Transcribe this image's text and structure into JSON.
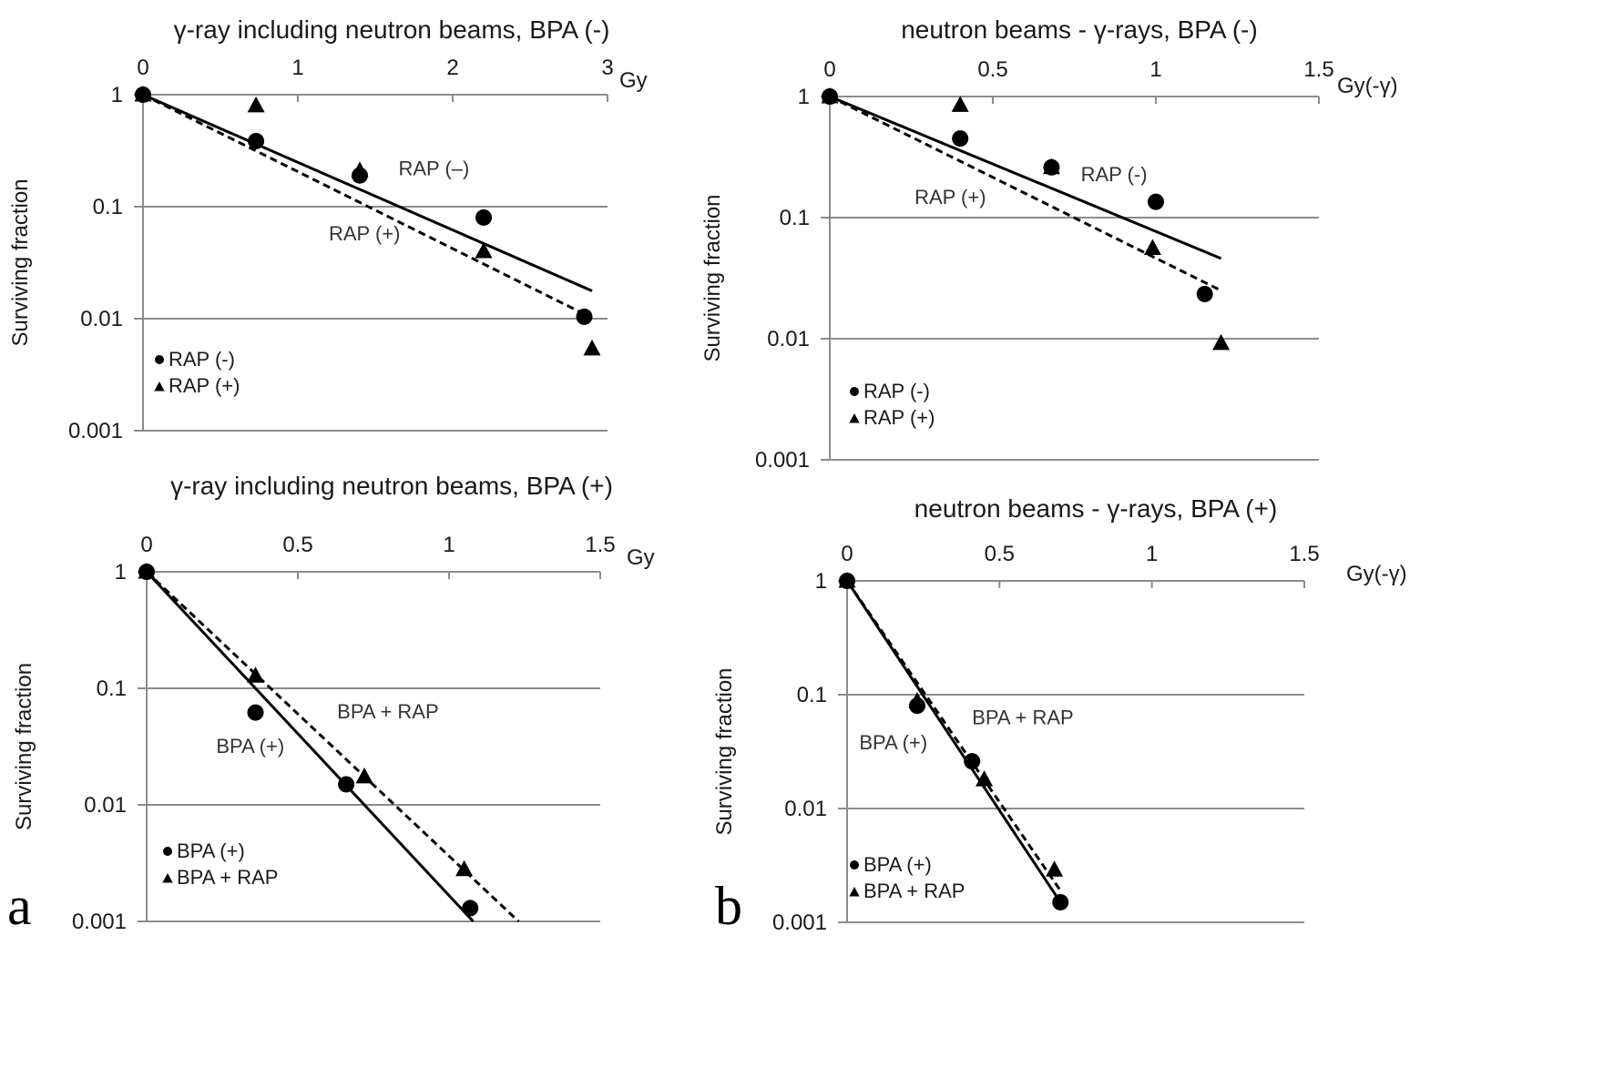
{
  "chart_data": [
    {
      "id": "a-top",
      "type": "scatter",
      "title": "γ-ray including neutron beams, BPA (-)",
      "xlabel": "Gy",
      "ylabel": "Surviving fraction",
      "x_ticks": [
        "0",
        "1",
        "2",
        "3"
      ],
      "x_tick_values": [
        0,
        1,
        2,
        3
      ],
      "xlim": [
        0,
        3
      ],
      "y_scale": "log",
      "y_ticks": [
        "1",
        "0.1",
        "0.01",
        "0.001"
      ],
      "y_tick_values": [
        1,
        0.1,
        0.01,
        0.001
      ],
      "ylim": [
        0.001,
        1
      ],
      "grid": "horizontal",
      "legend_position": "bottom-left",
      "series": [
        {
          "name": "RAP (-)",
          "marker": "circle",
          "fit": "solid",
          "x": [
            0,
            0.73,
            1.4,
            2.2,
            2.85
          ],
          "y": [
            1,
            0.385,
            0.19,
            0.08,
            0.0104
          ],
          "fit_line": {
            "x": [
              0,
              2.9
            ],
            "y": [
              1,
              0.0177
            ]
          }
        },
        {
          "name": "RAP (+)",
          "marker": "triangle",
          "fit": "dashed",
          "x": [
            0,
            0.73,
            1.4,
            2.2,
            2.9
          ],
          "y": [
            1,
            0.8,
            0.21,
            0.04,
            0.0054
          ],
          "fit_line": {
            "x": [
              0,
              2.85
            ],
            "y": [
              1,
              0.011
            ]
          }
        }
      ],
      "annotations": [
        {
          "text": "RAP (–)",
          "x": 1.65,
          "y": 0.19
        },
        {
          "text": "RAP (+)",
          "x": 1.2,
          "y": 0.05
        }
      ],
      "panel_letter": ""
    },
    {
      "id": "b-top",
      "type": "scatter",
      "title": "neutron beams - γ-rays, BPA (-)",
      "xlabel": "Gy(-γ)",
      "ylabel": "Surviving fraction",
      "x_ticks": [
        "0",
        "0.5",
        "1",
        "1.5"
      ],
      "x_tick_values": [
        0,
        0.5,
        1,
        1.5
      ],
      "xlim": [
        0,
        1.5
      ],
      "y_scale": "log",
      "y_ticks": [
        "1",
        "0.1",
        "0.01",
        "0.001"
      ],
      "y_tick_values": [
        1,
        0.1,
        0.01,
        0.001
      ],
      "ylim": [
        0.001,
        1
      ],
      "grid": "horizontal",
      "legend_position": "bottom-left",
      "series": [
        {
          "name": "RAP (-)",
          "marker": "circle",
          "fit": "solid",
          "x": [
            0,
            0.4,
            0.68,
            1.0,
            1.15
          ],
          "y": [
            1,
            0.45,
            0.26,
            0.135,
            0.0234
          ],
          "fit_line": {
            "x": [
              0,
              1.2
            ],
            "y": [
              1,
              0.046
            ]
          }
        },
        {
          "name": "RAP (+)",
          "marker": "triangle",
          "fit": "dashed",
          "x": [
            0,
            0.4,
            0.68,
            0.99,
            1.2
          ],
          "y": [
            1,
            0.85,
            0.26,
            0.056,
            0.0092
          ],
          "fit_line": {
            "x": [
              0,
              1.2
            ],
            "y": [
              1,
              0.025
            ]
          }
        }
      ],
      "annotations": [
        {
          "text": "RAP (-)",
          "x": 0.77,
          "y": 0.2
        },
        {
          "text": "RAP (+)",
          "x": 0.26,
          "y": 0.13
        }
      ],
      "panel_letter": ""
    },
    {
      "id": "a-bottom",
      "type": "scatter",
      "title": "γ-ray including neutron beams, BPA (+)",
      "xlabel": "Gy",
      "ylabel": "Surviving fraction",
      "x_ticks": [
        "0",
        "0.5",
        "1",
        "1.5"
      ],
      "x_tick_values": [
        0,
        0.5,
        1,
        1.5
      ],
      "xlim": [
        0,
        1.5
      ],
      "y_scale": "log",
      "y_ticks": [
        "1",
        "0.1",
        "0.01",
        "0.001"
      ],
      "y_tick_values": [
        1,
        0.1,
        0.01,
        0.001
      ],
      "ylim": [
        0.001,
        1
      ],
      "grid": "horizontal",
      "legend_position": "bottom-left",
      "series": [
        {
          "name": "BPA (+)",
          "marker": "circle",
          "fit": "solid",
          "x": [
            0,
            0.36,
            0.66,
            1.07
          ],
          "y": [
            1,
            0.062,
            0.015,
            0.0013
          ],
          "fit_line": {
            "x": [
              0,
              1.08
            ],
            "y": [
              1,
              0.001
            ]
          }
        },
        {
          "name": "BPA + RAP",
          "marker": "triangle",
          "fit": "dashed",
          "x": [
            0,
            0.36,
            0.72,
            1.05
          ],
          "y": [
            1,
            0.128,
            0.0175,
            0.0028
          ],
          "fit_line": {
            "x": [
              0,
              1.23
            ],
            "y": [
              1,
              0.001
            ]
          }
        }
      ],
      "annotations": [
        {
          "text": "BPA + RAP",
          "x": 0.63,
          "y": 0.055
        },
        {
          "text": "BPA (+)",
          "x": 0.23,
          "y": 0.028
        }
      ],
      "panel_letter": "a"
    },
    {
      "id": "b-bottom",
      "type": "scatter",
      "title": "neutron beams - γ-rays, BPA (+)",
      "xlabel": "Gy(-γ)",
      "ylabel": "Surviving fraction",
      "x_ticks": [
        "0",
        "0.5",
        "1",
        "1.5"
      ],
      "x_tick_values": [
        0,
        0.5,
        1,
        1.5
      ],
      "xlim": [
        0,
        1.5
      ],
      "y_scale": "log",
      "y_ticks": [
        "1",
        "0.1",
        "0.01",
        "0.001"
      ],
      "y_tick_values": [
        1,
        0.1,
        0.01,
        0.001
      ],
      "ylim": [
        0.001,
        1
      ],
      "grid": "horizontal",
      "legend_position": "bottom-left",
      "series": [
        {
          "name": "BPA (+)",
          "marker": "circle",
          "fit": "solid",
          "x": [
            0,
            0.23,
            0.41,
            0.7
          ],
          "y": [
            1,
            0.08,
            0.026,
            0.0015
          ],
          "fit_line": {
            "x": [
              0,
              0.7
            ],
            "y": [
              1,
              0.0015
            ]
          }
        },
        {
          "name": "BPA + RAP",
          "marker": "triangle",
          "fit": "dashed",
          "x": [
            0,
            0.23,
            0.45,
            0.68
          ],
          "y": [
            1,
            0.088,
            0.018,
            0.0029
          ],
          "fit_line": {
            "x": [
              0,
              0.7
            ],
            "y": [
              1,
              0.0019
            ]
          }
        }
      ],
      "annotations": [
        {
          "text": "BPA + RAP",
          "x": 0.41,
          "y": 0.055
        },
        {
          "text": "BPA (+)",
          "x": 0.04,
          "y": 0.033
        }
      ],
      "panel_letter": "b"
    }
  ]
}
